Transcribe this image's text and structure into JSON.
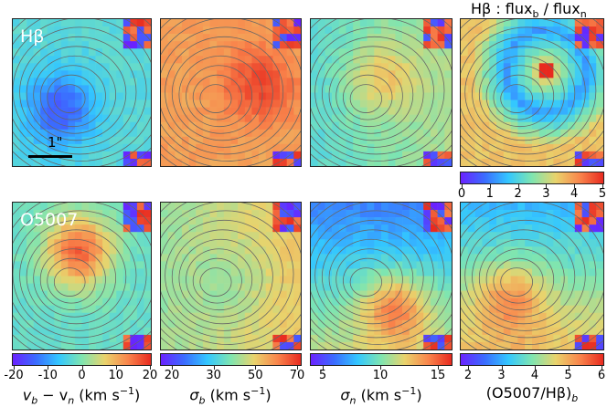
{
  "rows": [
    {
      "label": "Hβ",
      "panels": [
        {
          "id": "hb_vel",
          "hot": [
            0.45,
            0.55
          ],
          "base": 0.42,
          "blob": [
            0.34,
            0.62,
            0.12
          ],
          "mode": "flat"
        },
        {
          "id": "hb_sigb",
          "hot": [
            0.68,
            0.5
          ],
          "base": 0.78,
          "blob": [
            0.7,
            0.45,
            0.95
          ],
          "mode": "warm"
        },
        {
          "id": "hb_sign",
          "hot": [
            0.4,
            0.6
          ],
          "base": 0.5,
          "blob": [
            0.5,
            0.4,
            0.7
          ],
          "mode": "mixed"
        },
        {
          "id": "hb_flux",
          "hot": [
            0.6,
            0.38
          ],
          "base": 0.55,
          "blob": [
            0.6,
            0.35,
            0.92
          ],
          "mode": "ring"
        }
      ]
    },
    {
      "label": "O5007",
      "panels": [
        {
          "id": "o_vel",
          "hot": [
            0.45,
            0.35
          ],
          "base": 0.45,
          "blob": [
            0.48,
            0.33,
            0.9
          ],
          "mode": "warmblob"
        },
        {
          "id": "o_sigb",
          "hot": [
            0.5,
            0.55
          ],
          "base": 0.62,
          "blob": [
            0.5,
            0.55,
            0.55
          ],
          "mode": "mixed"
        },
        {
          "id": "o_sign",
          "hot": [
            0.55,
            0.7
          ],
          "base": 0.4,
          "blob": [
            0.6,
            0.72,
            0.75
          ],
          "mode": "lower"
        },
        {
          "id": "o_ratio",
          "hot": [
            0.4,
            0.65
          ],
          "base": 0.5,
          "blob": [
            0.35,
            0.65,
            0.75
          ],
          "mode": "lower"
        }
      ]
    }
  ],
  "scale_bar": {
    "label": "1\""
  },
  "top_colorbar": {
    "title": "Hβ : flux_b / flux_n",
    "title_main": "Hβ : flux",
    "title_b": "b",
    "title_slash": " / flux",
    "title_n": "n",
    "ticks": [
      "0",
      "1",
      "2",
      "3",
      "4",
      "5"
    ]
  },
  "bottom_colorbars": [
    {
      "ticks": [
        "-20",
        "-10",
        "0",
        "10",
        "20"
      ],
      "label_main": "v",
      "label_sub1": "b",
      "label_mid": " − v",
      "label_sub2": "n",
      "label_unit": " (km s",
      "label_exp": "−1",
      "label_end": ")"
    },
    {
      "ticks": [
        "20",
        "30",
        "50",
        "70"
      ],
      "label_main": "σ",
      "label_sub1": "b",
      "label_unit": " (km s",
      "label_exp": "−1",
      "label_end": ")"
    },
    {
      "ticks": [
        "5",
        "10",
        "15"
      ],
      "label_main": "σ",
      "label_sub1": "n",
      "label_unit": " (km s",
      "label_exp": "−1",
      "label_end": ")"
    },
    {
      "ticks": [
        "2",
        "3",
        "4",
        "5",
        "6"
      ],
      "label_main": "(O5007/Hβ)",
      "label_sub1": "b"
    }
  ],
  "colors": {
    "jet": [
      "#6a22ff",
      "#3b6cff",
      "#33c7ff",
      "#7fe5b0",
      "#e9d36c",
      "#f9864c",
      "#e82a1f"
    ],
    "contour": "#666666"
  }
}
